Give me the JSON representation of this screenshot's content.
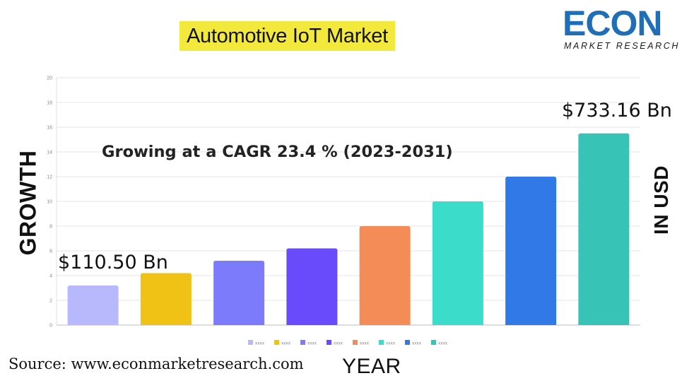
{
  "title": "Automotive IoT Market",
  "logo": {
    "main": "ECON",
    "sub": "MARKET RESEARCH"
  },
  "left_axis_label": "GROWTH",
  "right_axis_label": "IN USD",
  "x_axis_label": "YEAR",
  "source": "Source: www.econmarketresearch.com",
  "colors": {
    "title_highlight": "#f3e93c",
    "logo_blue": "#1f6fb8"
  },
  "chart_data": {
    "type": "bar",
    "ylim": [
      0,
      20
    ],
    "y_ticks": [
      "0",
      "2",
      "4",
      "6",
      "8",
      "10",
      "12",
      "14",
      "16",
      "18",
      "20"
    ],
    "grid": true,
    "values": [
      3.2,
      4.2,
      5.2,
      6.2,
      8.0,
      10.0,
      12.0,
      15.5
    ],
    "colors": [
      "#b8b8fc",
      "#f0c215",
      "#7b7bfc",
      "#6a4bfc",
      "#f48c57",
      "#3cdccb",
      "#3079e6",
      "#37c4b7"
    ],
    "legend": [
      "xxxx",
      "xxxx",
      "xxxx",
      "xxxx",
      "xxxx",
      "xxxx",
      "xxxx",
      "xxxx"
    ],
    "legend_position": "bottom",
    "annotations": {
      "cagr": "Growing at a CAGR 23.4 % (2023-2031)",
      "start_value": "$110.50 Bn",
      "end_value": "$733.16 Bn"
    }
  }
}
